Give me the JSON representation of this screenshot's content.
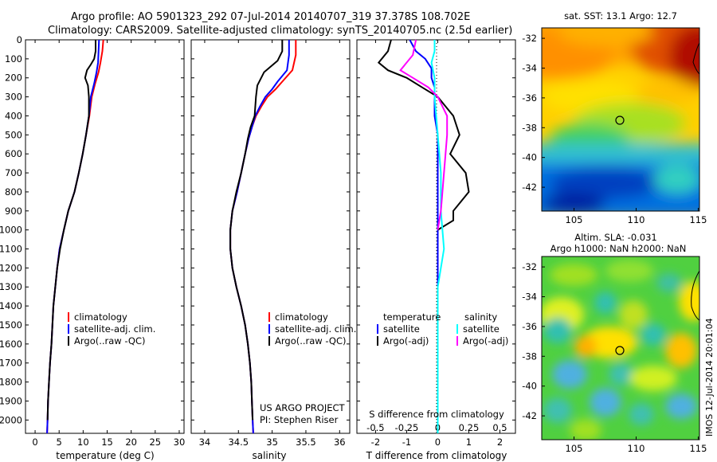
{
  "header": {
    "line1": "Argo profile: AO 5901323_292 07-Jul-2014 20140707_319 37.378S 108.702E",
    "line2": "Climatology: CARS2009. Satellite-adjusted climatology: synTS_20140705.nc (2.5d earlier)"
  },
  "sst_title": "sat. SST: 13.1 Argo: 12.7",
  "sla_title1": "Altim. SLA: -0.031",
  "sla_title2": "Argo h1000: NaN h2000: NaN",
  "credit": "IMOS 12-Jul-2014 20:01:04",
  "project": {
    "line1": "US ARGO PROJECT",
    "line2": "PI: Stephen Riser"
  },
  "colors": {
    "climatology": "#ff0000",
    "satellite": "#0000ff",
    "argo": "#000000",
    "sal_sat": "#00ffff",
    "sal_argo": "#ff00ff"
  },
  "chart_data": [
    {
      "type": "line",
      "xlabel": "temperature (deg C)",
      "xticks": [
        "0",
        "5",
        "10",
        "15",
        "20",
        "25",
        "30"
      ],
      "xlim": [
        -2,
        31
      ],
      "ylim": [
        0,
        2070
      ],
      "yticks": [
        "0",
        "100",
        "200",
        "300",
        "400",
        "500",
        "600",
        "700",
        "800",
        "900",
        "1000",
        "1100",
        "1200",
        "1300",
        "1400",
        "1500",
        "1600",
        "1700",
        "1800",
        "1900",
        "2000"
      ],
      "legend": [
        "climatology",
        "satellite-adj. clim.",
        "Argo(..raw -QC)"
      ],
      "series": [
        {
          "name": "climatology",
          "color": "#ff0000",
          "points": [
            [
              14.2,
              0
            ],
            [
              14.0,
              60
            ],
            [
              13.6,
              120
            ],
            [
              13.2,
              170
            ],
            [
              12.5,
              230
            ],
            [
              11.8,
              300
            ],
            [
              11.3,
              400
            ],
            [
              10.6,
              500
            ],
            [
              9.9,
              600
            ],
            [
              9.1,
              700
            ],
            [
              8.2,
              800
            ],
            [
              6.9,
              900
            ],
            [
              6.0,
              1000
            ],
            [
              5.1,
              1100
            ],
            [
              4.6,
              1200
            ],
            [
              4.2,
              1300
            ],
            [
              3.8,
              1400
            ],
            [
              3.6,
              1500
            ],
            [
              3.4,
              1600
            ],
            [
              3.1,
              1700
            ],
            [
              2.9,
              1800
            ],
            [
              2.7,
              1900
            ],
            [
              2.6,
              2000
            ],
            [
              2.5,
              2070
            ]
          ]
        },
        {
          "name": "satellite-adj. clim.",
          "color": "#0000ff",
          "points": [
            [
              13.3,
              0
            ],
            [
              13.2,
              60
            ],
            [
              13.1,
              120
            ],
            [
              12.8,
              170
            ],
            [
              12.3,
              230
            ],
            [
              11.6,
              300
            ],
            [
              11.2,
              400
            ],
            [
              10.6,
              500
            ],
            [
              9.9,
              600
            ],
            [
              9.1,
              700
            ],
            [
              8.2,
              800
            ],
            [
              6.9,
              900
            ],
            [
              6.0,
              1000
            ],
            [
              5.1,
              1100
            ],
            [
              4.6,
              1200
            ],
            [
              4.2,
              1300
            ],
            [
              3.8,
              1400
            ],
            [
              3.6,
              1500
            ],
            [
              3.4,
              1600
            ],
            [
              3.1,
              1700
            ],
            [
              2.9,
              1800
            ],
            [
              2.7,
              1900
            ],
            [
              2.6,
              2000
            ],
            [
              2.5,
              2070
            ]
          ]
        },
        {
          "name": "Argo(..raw -QC)",
          "color": "#000000",
          "points": [
            [
              12.6,
              0
            ],
            [
              12.6,
              60
            ],
            [
              12.3,
              100
            ],
            [
              11.6,
              130
            ],
            [
              10.8,
              160
            ],
            [
              10.4,
              200
            ],
            [
              11.0,
              240
            ],
            [
              11.2,
              300
            ],
            [
              11.2,
              400
            ],
            [
              10.6,
              500
            ],
            [
              9.9,
              600
            ],
            [
              9.1,
              700
            ],
            [
              8.2,
              800
            ],
            [
              6.9,
              900
            ],
            [
              6.0,
              1000
            ],
            [
              5.2,
              1100
            ],
            [
              4.6,
              1200
            ],
            [
              4.2,
              1300
            ],
            [
              3.8,
              1400
            ],
            [
              3.6,
              1500
            ],
            [
              3.4,
              1600
            ],
            [
              3.1,
              1700
            ],
            [
              2.9,
              1800
            ],
            [
              2.7,
              1900
            ],
            [
              2.6,
              2000
            ]
          ]
        }
      ]
    },
    {
      "type": "line",
      "xlabel": "salinity",
      "xticks": [
        "34",
        "34.5",
        "35",
        "35.5",
        "36"
      ],
      "xlim": [
        33.8,
        36.15
      ],
      "ylim": [
        0,
        2070
      ],
      "legend": [
        "climatology",
        "satellite-adj. clim.",
        "Argo(..raw -QC)"
      ],
      "series": [
        {
          "name": "climatology",
          "color": "#ff0000",
          "points": [
            [
              35.35,
              0
            ],
            [
              35.35,
              80
            ],
            [
              35.3,
              160
            ],
            [
              35.15,
              220
            ],
            [
              35.05,
              260
            ],
            [
              34.93,
              300
            ],
            [
              34.84,
              350
            ],
            [
              34.76,
              400
            ],
            [
              34.7,
              460
            ],
            [
              34.65,
              520
            ],
            [
              34.6,
              600
            ],
            [
              34.54,
              700
            ],
            [
              34.48,
              800
            ],
            [
              34.41,
              900
            ],
            [
              34.38,
              1000
            ],
            [
              34.38,
              1100
            ],
            [
              34.41,
              1200
            ],
            [
              34.47,
              1300
            ],
            [
              34.54,
              1400
            ],
            [
              34.6,
              1500
            ],
            [
              34.64,
              1600
            ],
            [
              34.67,
              1700
            ],
            [
              34.69,
              1800
            ],
            [
              34.7,
              1900
            ],
            [
              34.71,
              2000
            ],
            [
              34.72,
              2070
            ]
          ]
        },
        {
          "name": "satellite-adj. clim.",
          "color": "#0000ff",
          "points": [
            [
              35.25,
              0
            ],
            [
              35.25,
              80
            ],
            [
              35.22,
              160
            ],
            [
              35.08,
              220
            ],
            [
              35.0,
              260
            ],
            [
              34.9,
              300
            ],
            [
              34.82,
              350
            ],
            [
              34.75,
              400
            ],
            [
              34.7,
              460
            ],
            [
              34.65,
              520
            ],
            [
              34.6,
              600
            ],
            [
              34.54,
              700
            ],
            [
              34.48,
              800
            ],
            [
              34.41,
              900
            ],
            [
              34.38,
              1000
            ],
            [
              34.38,
              1100
            ],
            [
              34.41,
              1200
            ],
            [
              34.47,
              1300
            ],
            [
              34.54,
              1400
            ],
            [
              34.6,
              1500
            ],
            [
              34.64,
              1600
            ],
            [
              34.67,
              1700
            ],
            [
              34.69,
              1800
            ],
            [
              34.7,
              1900
            ],
            [
              34.71,
              2000
            ],
            [
              34.72,
              2070
            ]
          ]
        },
        {
          "name": "Argo(..raw -QC)",
          "color": "#000000",
          "points": [
            [
              35.15,
              0
            ],
            [
              35.15,
              60
            ],
            [
              35.08,
              110
            ],
            [
              34.88,
              170
            ],
            [
              34.78,
              240
            ],
            [
              34.76,
              300
            ],
            [
              34.74,
              400
            ],
            [
              34.68,
              460
            ],
            [
              34.64,
              520
            ],
            [
              34.6,
              600
            ],
            [
              34.54,
              700
            ],
            [
              34.47,
              800
            ],
            [
              34.41,
              900
            ],
            [
              34.38,
              1000
            ],
            [
              34.38,
              1100
            ],
            [
              34.41,
              1200
            ],
            [
              34.47,
              1300
            ],
            [
              34.54,
              1400
            ],
            [
              34.6,
              1500
            ],
            [
              34.64,
              1600
            ],
            [
              34.67,
              1700
            ],
            [
              34.69,
              1800
            ],
            [
              34.7,
              1900
            ],
            [
              34.71,
              2000
            ]
          ]
        }
      ]
    },
    {
      "type": "line",
      "xlabel": "T difference from climatology",
      "xlabel_top": "S difference from climatology",
      "xticks": [
        "-2",
        "-1",
        "0",
        "1",
        "2"
      ],
      "xticks_top": [
        "-0.5",
        "-0.25",
        "0",
        "0.25",
        "0.5"
      ],
      "xlim": [
        -2.6,
        2.5
      ],
      "ylim": [
        0,
        2070
      ],
      "legend_left_title": "temperature",
      "legend_right_title": "salinity",
      "legend": [
        "satellite",
        "Argo(-adj)",
        "satellite",
        "Argo(-adj)"
      ],
      "series": [
        {
          "name": "satellite",
          "color": "#0000ff",
          "points": [
            [
              -0.9,
              0
            ],
            [
              -0.7,
              60
            ],
            [
              -0.4,
              100
            ],
            [
              -0.2,
              150
            ],
            [
              -0.2,
              200
            ],
            [
              -0.1,
              250
            ],
            [
              -0.1,
              300
            ],
            [
              -0.1,
              400
            ],
            [
              0,
              500
            ],
            [
              0,
              1000
            ],
            [
              0,
              2070
            ]
          ]
        },
        {
          "name": "Argo(-adj)",
          "color": "#000000",
          "points": [
            [
              -1.5,
              0
            ],
            [
              -1.6,
              60
            ],
            [
              -1.9,
              120
            ],
            [
              -1.6,
              160
            ],
            [
              -1.0,
              200
            ],
            [
              -0.5,
              250
            ],
            [
              0,
              300
            ],
            [
              0.5,
              400
            ],
            [
              0.7,
              500
            ],
            [
              0.4,
              600
            ],
            [
              0.9,
              700
            ],
            [
              1.0,
              800
            ],
            [
              0.5,
              900
            ],
            [
              0.5,
              950
            ],
            [
              0,
              1000
            ]
          ]
        },
        {
          "name": "satellite",
          "color": "#00ffff",
          "points": [
            [
              -0.1,
              0
            ],
            [
              -0.1,
              60
            ],
            [
              -0.2,
              120
            ],
            [
              -0.1,
              200
            ],
            [
              -0.1,
              300
            ],
            [
              0,
              500
            ],
            [
              0.1,
              700
            ],
            [
              0.1,
              900
            ],
            [
              0.2,
              1100
            ],
            [
              0.1,
              1200
            ],
            [
              0,
              1300
            ],
            [
              0,
              2070
            ]
          ]
        },
        {
          "name": "Argo(-adj)",
          "color": "#ff00ff",
          "points": [
            [
              -0.7,
              0
            ],
            [
              -0.8,
              80
            ],
            [
              -1.2,
              160
            ],
            [
              -0.8,
              200
            ],
            [
              -0.3,
              250
            ],
            [
              0,
              300
            ],
            [
              0.3,
              400
            ],
            [
              0.3,
              500
            ],
            [
              0.2,
              700
            ],
            [
              0.1,
              900
            ],
            [
              0,
              1000
            ]
          ]
        }
      ]
    }
  ],
  "map_axes": {
    "sst": {
      "xticks": [
        "105",
        "110",
        "115"
      ],
      "yticks": [
        "-32",
        "-34",
        "-36",
        "-38",
        "-40",
        "-42"
      ]
    },
    "sla": {
      "xticks": [
        "105",
        "110",
        "115"
      ],
      "yticks": [
        "-32",
        "-34",
        "-36",
        "-38",
        "-40",
        "-42"
      ]
    }
  }
}
